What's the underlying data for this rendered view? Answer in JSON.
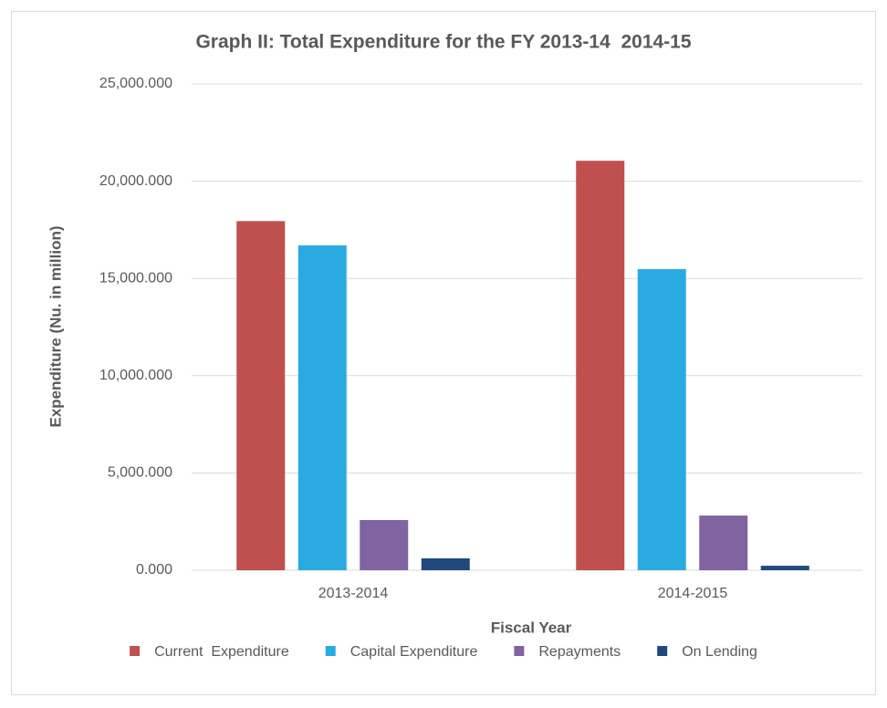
{
  "chart_data": {
    "type": "bar",
    "title": "Graph II: Total Expenditure for the FY 2013-14  2014-15",
    "x_label": "Fiscal Year",
    "y_label": "Expenditure (Nu. in million)",
    "categories": [
      "2013-2014",
      "2014-2015"
    ],
    "series": [
      {
        "name": "Current  Expenditure",
        "color": "#c0504d",
        "values": [
          17950,
          21050
        ]
      },
      {
        "name": "Capital Expenditure",
        "color": "#29abe2",
        "values": [
          16700,
          15480
        ]
      },
      {
        "name": "Repayments",
        "color": "#8064a2",
        "values": [
          2580,
          2810
        ]
      },
      {
        "name": "On Lending",
        "color": "#1f497d",
        "values": [
          610,
          230
        ]
      }
    ],
    "ylim": [
      0,
      25000
    ],
    "yticks": [
      {
        "value": 0,
        "label": "0.000"
      },
      {
        "value": 5000,
        "label": "5,000.000"
      },
      {
        "value": 10000,
        "label": "10,000.000"
      },
      {
        "value": 15000,
        "label": "15,000.000"
      },
      {
        "value": 20000,
        "label": "20,000.000"
      },
      {
        "value": 25000,
        "label": "25,000.000"
      }
    ],
    "grid": true,
    "legend": "bottom"
  }
}
